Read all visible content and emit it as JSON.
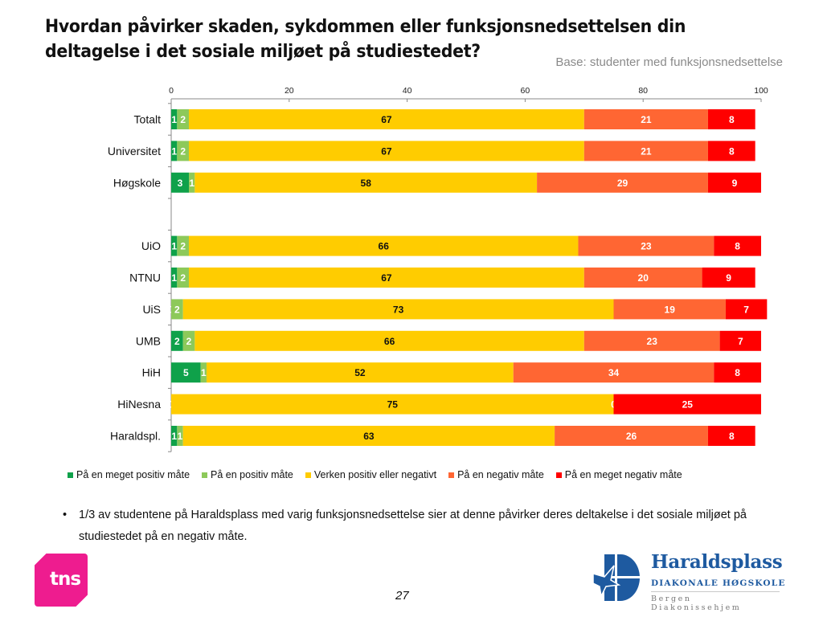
{
  "slide": {
    "title": "Hvordan påvirker skaden, sykdommen eller funksjonsnedsettelsen din deltagelse i det sosiale miljøet på studiestedet?",
    "subtitle": "Base: studenter med funksjonsnedsettelse",
    "note_bullet": "•",
    "note": "1/3 av studentene på Haraldsplass med varig funksjonsnedsettelse sier at denne påvirker deres deltakelse i det sosiale miljøet på studiestedet på en negativ måte.",
    "page_number": "27",
    "tns_logo_text": "tns",
    "partner_logo": {
      "name": "Haraldsplass",
      "line1": "DIAKONALE HØGSKOLE",
      "line2": "Bergen Diakonissehjem"
    }
  },
  "chart_data": {
    "type": "bar",
    "orientation": "horizontal",
    "stacked": true,
    "title": "",
    "xlabel": "",
    "ylabel": "",
    "xlim": [
      0,
      100
    ],
    "xticks": [
      0,
      20,
      40,
      60,
      80,
      100
    ],
    "xtick_labels": [
      "0",
      "20",
      "40",
      "60",
      "80",
      "100"
    ],
    "axis_position": "top",
    "grid": false,
    "legend_position": "bottom",
    "categories": [
      "Totalt",
      "Universitet",
      "Høgskole",
      "",
      "UiO",
      "NTNU",
      "UiS",
      "UMB",
      "HiH",
      "HiNesna",
      "Haraldspl."
    ],
    "series": [
      {
        "name": "På en meget positiv måte",
        "color": "#0fa14a",
        "values": [
          1,
          1,
          3,
          null,
          1,
          1,
          0,
          2,
          5,
          0,
          1
        ]
      },
      {
        "name": "På en positiv måte",
        "color": "#8dc95a",
        "values": [
          2,
          2,
          1,
          null,
          2,
          2,
          2,
          2,
          1,
          0,
          1
        ]
      },
      {
        "name": "Verken positiv eller negativt",
        "color": "#ffcc00",
        "values": [
          67,
          67,
          58,
          null,
          66,
          67,
          73,
          66,
          52,
          75,
          63
        ]
      },
      {
        "name": "På en negativ måte",
        "color": "#ff6633",
        "values": [
          21,
          21,
          29,
          null,
          23,
          20,
          19,
          23,
          34,
          0,
          26
        ]
      },
      {
        "name": "På en meget negativ måte",
        "color": "#ff0000",
        "values": [
          8,
          8,
          9,
          null,
          8,
          9,
          7,
          7,
          8,
          25,
          8
        ]
      }
    ],
    "label_colors": [
      "#ffffff",
      "#ffffff",
      "#111111",
      "#ffffff",
      "#ffffff"
    ]
  }
}
